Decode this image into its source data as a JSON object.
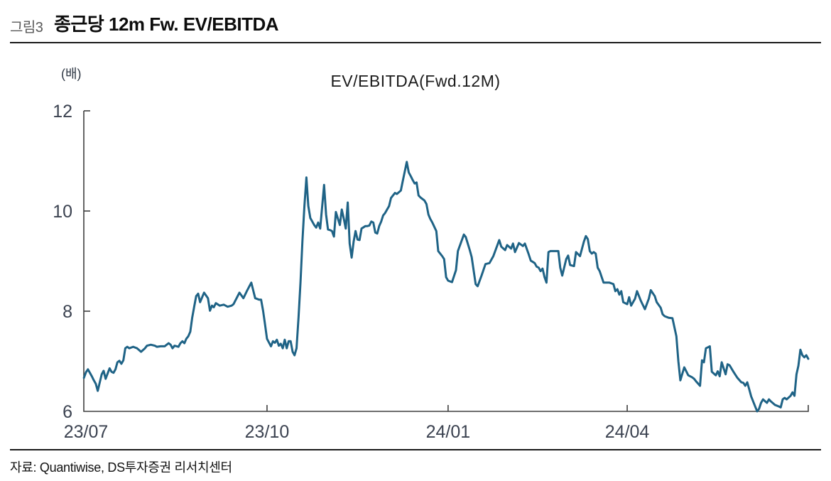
{
  "figure": {
    "label": "그림3",
    "title": "종근당 12m Fw. EV/EBITDA"
  },
  "source": "자료: Quantiwise, DS투자증권 리서치센터",
  "chart_data": {
    "type": "line",
    "title": "EV/EBITDA(Fwd.12M)",
    "unit_label": "(배)",
    "ylabel": "(배)",
    "ylim": [
      6,
      12
    ],
    "y_ticks": [
      6,
      8,
      10,
      12
    ],
    "x_unit": "days since 2023-07-01",
    "xlim_days": [
      -1,
      368
    ],
    "x_ticks": [
      {
        "day": 0,
        "label": "23/07"
      },
      {
        "day": 92,
        "label": "23/10"
      },
      {
        "day": 184,
        "label": "24/01"
      },
      {
        "day": 275,
        "label": "24/04"
      }
    ],
    "grid": false,
    "legend": "none",
    "line_color": "#1F6386",
    "axis_color": "#3f3f3f",
    "tick_label_color": "#3b4250",
    "series": [
      {
        "name": "EV/EBITDA(Fwd.12M)",
        "points": [
          [
            -1,
            6.67
          ],
          [
            0,
            6.78
          ],
          [
            1,
            6.84
          ],
          [
            3,
            6.7
          ],
          [
            4,
            6.62
          ],
          [
            5,
            6.55
          ],
          [
            6,
            6.41
          ],
          [
            8,
            6.74
          ],
          [
            9,
            6.81
          ],
          [
            10,
            6.65
          ],
          [
            12,
            6.86
          ],
          [
            13,
            6.79
          ],
          [
            14,
            6.77
          ],
          [
            15,
            6.84
          ],
          [
            16,
            6.98
          ],
          [
            17,
            7.01
          ],
          [
            18,
            6.95
          ],
          [
            19,
            7.02
          ],
          [
            20,
            7.26
          ],
          [
            21,
            7.29
          ],
          [
            22,
            7.26
          ],
          [
            24,
            7.29
          ],
          [
            26,
            7.26
          ],
          [
            28,
            7.19
          ],
          [
            30,
            7.26
          ],
          [
            31,
            7.31
          ],
          [
            33,
            7.33
          ],
          [
            35,
            7.31
          ],
          [
            36,
            7.29
          ],
          [
            38,
            7.3
          ],
          [
            40,
            7.3
          ],
          [
            42,
            7.36
          ],
          [
            43,
            7.33
          ],
          [
            44,
            7.26
          ],
          [
            45,
            7.31
          ],
          [
            47,
            7.29
          ],
          [
            48,
            7.36
          ],
          [
            49,
            7.4
          ],
          [
            50,
            7.36
          ],
          [
            51,
            7.45
          ],
          [
            52,
            7.5
          ],
          [
            53,
            7.59
          ],
          [
            54,
            7.87
          ],
          [
            55,
            8.09
          ],
          [
            56,
            8.3
          ],
          [
            57,
            8.35
          ],
          [
            58,
            8.18
          ],
          [
            60,
            8.37
          ],
          [
            62,
            8.26
          ],
          [
            63,
            8.01
          ],
          [
            64,
            8.11
          ],
          [
            65,
            8.08
          ],
          [
            66,
            8.16
          ],
          [
            68,
            8.11
          ],
          [
            70,
            8.13
          ],
          [
            72,
            8.09
          ],
          [
            74,
            8.11
          ],
          [
            75,
            8.14
          ],
          [
            78,
            8.37
          ],
          [
            80,
            8.26
          ],
          [
            82,
            8.42
          ],
          [
            84,
            8.57
          ],
          [
            86,
            8.26
          ],
          [
            88,
            8.23
          ],
          [
            89,
            8.23
          ],
          [
            90,
            8.01
          ],
          [
            91,
            7.73
          ],
          [
            92,
            7.45
          ],
          [
            94,
            7.3
          ],
          [
            95,
            7.4
          ],
          [
            96,
            7.37
          ],
          [
            97,
            7.43
          ],
          [
            98,
            7.31
          ],
          [
            99,
            7.35
          ],
          [
            100,
            7.26
          ],
          [
            101,
            7.43
          ],
          [
            102,
            7.26
          ],
          [
            103,
            7.4
          ],
          [
            104,
            7.4
          ],
          [
            105,
            7.19
          ],
          [
            106,
            7.12
          ],
          [
            107,
            7.26
          ],
          [
            108,
            7.87
          ],
          [
            109,
            8.58
          ],
          [
            110,
            9.4
          ],
          [
            111,
            10.1
          ],
          [
            112,
            10.67
          ],
          [
            113,
            10.1
          ],
          [
            114,
            9.86
          ],
          [
            116,
            9.72
          ],
          [
            117,
            9.67
          ],
          [
            118,
            9.77
          ],
          [
            119,
            9.65
          ],
          [
            121,
            10.52
          ],
          [
            122,
            9.93
          ],
          [
            123,
            9.63
          ],
          [
            124,
            9.62
          ],
          [
            125,
            9.6
          ],
          [
            126,
            9.49
          ],
          [
            127,
            9.98
          ],
          [
            129,
            9.72
          ],
          [
            130,
            10.03
          ],
          [
            131,
            9.85
          ],
          [
            132,
            9.65
          ],
          [
            133,
            10.17
          ],
          [
            134,
            9.35
          ],
          [
            135,
            9.07
          ],
          [
            136,
            9.39
          ],
          [
            137,
            9.6
          ],
          [
            138,
            9.43
          ],
          [
            139,
            9.42
          ],
          [
            140,
            9.65
          ],
          [
            142,
            9.7
          ],
          [
            143,
            9.7
          ],
          [
            144,
            9.71
          ],
          [
            145,
            9.79
          ],
          [
            146,
            9.77
          ],
          [
            147,
            9.57
          ],
          [
            148,
            9.55
          ],
          [
            149,
            9.7
          ],
          [
            150,
            9.79
          ],
          [
            151,
            9.91
          ],
          [
            152,
            9.96
          ],
          [
            154,
            10.1
          ],
          [
            155,
            10.26
          ],
          [
            156,
            10.31
          ],
          [
            157,
            10.36
          ],
          [
            158,
            10.34
          ],
          [
            160,
            10.41
          ],
          [
            161,
            10.6
          ],
          [
            163,
            10.98
          ],
          [
            164,
            10.77
          ],
          [
            165,
            10.7
          ],
          [
            166,
            10.62
          ],
          [
            167,
            10.55
          ],
          [
            168,
            10.57
          ],
          [
            169,
            10.31
          ],
          [
            170,
            10.27
          ],
          [
            172,
            10.21
          ],
          [
            173,
            10.14
          ],
          [
            174,
            9.93
          ],
          [
            175,
            9.84
          ],
          [
            176,
            9.77
          ],
          [
            178,
            9.6
          ],
          [
            179,
            9.2
          ],
          [
            181,
            9.1
          ],
          [
            182,
            9.04
          ],
          [
            183,
            8.68
          ],
          [
            184,
            8.61
          ],
          [
            186,
            8.58
          ],
          [
            188,
            8.82
          ],
          [
            189,
            9.2
          ],
          [
            192,
            9.53
          ],
          [
            193,
            9.48
          ],
          [
            194,
            9.35
          ],
          [
            195,
            9.22
          ],
          [
            196,
            9.08
          ],
          [
            198,
            8.54
          ],
          [
            199,
            8.5
          ],
          [
            201,
            8.71
          ],
          [
            203,
            8.94
          ],
          [
            205,
            8.96
          ],
          [
            207,
            9.1
          ],
          [
            210,
            9.42
          ],
          [
            211,
            9.29
          ],
          [
            213,
            9.22
          ],
          [
            214,
            9.32
          ],
          [
            216,
            9.25
          ],
          [
            217,
            9.35
          ],
          [
            218,
            9.18
          ],
          [
            220,
            9.36
          ],
          [
            222,
            9.3
          ],
          [
            223,
            9.35
          ],
          [
            225,
            9.13
          ],
          [
            226,
            9.01
          ],
          [
            228,
            8.96
          ],
          [
            229,
            8.89
          ],
          [
            230,
            8.87
          ],
          [
            231,
            8.8
          ],
          [
            232,
            8.85
          ],
          [
            233,
            8.68
          ],
          [
            234,
            8.57
          ],
          [
            235,
            9.18
          ],
          [
            236,
            9.2
          ],
          [
            240,
            9.2
          ],
          [
            241,
            8.87
          ],
          [
            242,
            8.71
          ],
          [
            244,
            9.04
          ],
          [
            245,
            9.11
          ],
          [
            246,
            8.92
          ],
          [
            248,
            8.9
          ],
          [
            249,
            9.18
          ],
          [
            251,
            9.1
          ],
          [
            253,
            9.39
          ],
          [
            254,
            9.5
          ],
          [
            255,
            9.44
          ],
          [
            256,
            9.2
          ],
          [
            257,
            9.15
          ],
          [
            258,
            9.18
          ],
          [
            259,
            9.15
          ],
          [
            260,
            8.87
          ],
          [
            261,
            8.8
          ],
          [
            263,
            8.57
          ],
          [
            266,
            8.57
          ],
          [
            268,
            8.54
          ],
          [
            269,
            8.4
          ],
          [
            270,
            8.44
          ],
          [
            271,
            8.33
          ],
          [
            272,
            8.4
          ],
          [
            273,
            8.18
          ],
          [
            275,
            8.14
          ],
          [
            276,
            8.28
          ],
          [
            277,
            8.11
          ],
          [
            279,
            8.25
          ],
          [
            280,
            8.4
          ],
          [
            282,
            8.2
          ],
          [
            284,
            8.04
          ],
          [
            286,
            8.25
          ],
          [
            287,
            8.42
          ],
          [
            289,
            8.3
          ],
          [
            290,
            8.18
          ],
          [
            292,
            8.07
          ],
          [
            293,
            7.94
          ],
          [
            294,
            7.9
          ],
          [
            296,
            7.87
          ],
          [
            298,
            7.86
          ],
          [
            300,
            7.5
          ],
          [
            301,
            7.0
          ],
          [
            302,
            6.62
          ],
          [
            304,
            6.88
          ],
          [
            305,
            6.8
          ],
          [
            306,
            6.72
          ],
          [
            308,
            6.68
          ],
          [
            309,
            6.65
          ],
          [
            310,
            6.6
          ],
          [
            312,
            6.51
          ],
          [
            313,
            7.02
          ],
          [
            314,
            6.98
          ],
          [
            315,
            7.26
          ],
          [
            317,
            7.3
          ],
          [
            318,
            6.79
          ],
          [
            320,
            6.72
          ],
          [
            321,
            6.8
          ],
          [
            322,
            6.7
          ],
          [
            323,
            6.98
          ],
          [
            325,
            6.74
          ],
          [
            326,
            6.94
          ],
          [
            327,
            6.92
          ],
          [
            329,
            6.79
          ],
          [
            331,
            6.67
          ],
          [
            333,
            6.58
          ],
          [
            334,
            6.57
          ],
          [
            335,
            6.51
          ],
          [
            336,
            6.58
          ],
          [
            337,
            6.44
          ],
          [
            338,
            6.3
          ],
          [
            340,
            6.1
          ],
          [
            341,
            6.0
          ],
          [
            342,
            6.05
          ],
          [
            343,
            6.17
          ],
          [
            344,
            6.24
          ],
          [
            346,
            6.17
          ],
          [
            347,
            6.24
          ],
          [
            348,
            6.2
          ],
          [
            350,
            6.13
          ],
          [
            352,
            6.1
          ],
          [
            353,
            6.08
          ],
          [
            354,
            6.24
          ],
          [
            355,
            6.27
          ],
          [
            356,
            6.24
          ],
          [
            358,
            6.31
          ],
          [
            359,
            6.38
          ],
          [
            360,
            6.31
          ],
          [
            361,
            6.74
          ],
          [
            362,
            6.91
          ],
          [
            363,
            7.23
          ],
          [
            364,
            7.12
          ],
          [
            365,
            7.08
          ],
          [
            366,
            7.12
          ],
          [
            367,
            7.05
          ]
        ]
      }
    ]
  }
}
